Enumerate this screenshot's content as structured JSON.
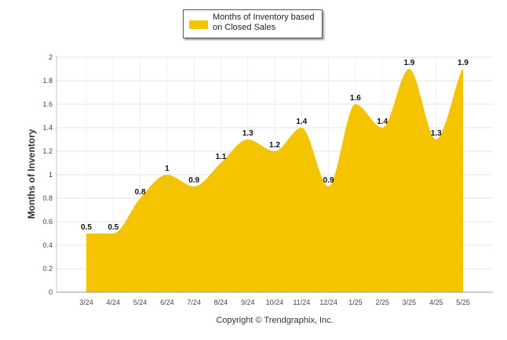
{
  "chart_data": {
    "type": "area",
    "legend": "Months of Inventory based on Closed Sales",
    "ylabel": "Months of Inventory",
    "categories": [
      "3/24",
      "4/24",
      "5/24",
      "6/24",
      "7/24",
      "8/24",
      "9/24",
      "10/24",
      "11/24",
      "12/24",
      "1/25",
      "2/25",
      "3/25",
      "4/25",
      "5/25"
    ],
    "values": [
      0.5,
      0.5,
      0.8,
      1,
      0.9,
      1.1,
      1.3,
      1.2,
      1.4,
      0.9,
      1.6,
      1.4,
      1.9,
      1.3,
      1.9
    ],
    "data_labels": [
      "0.5",
      "0.5",
      "0.8",
      "1",
      "0.9",
      "1.1",
      "1.3",
      "1.2",
      "1.4",
      "0.9",
      "1.6",
      "1.4",
      "1.9",
      "1.3",
      "1.9"
    ],
    "ylim": [
      0,
      2
    ],
    "yticks": [
      "0",
      "0.2",
      "0.4",
      "0.6",
      "0.8",
      "1",
      "1.2",
      "1.4",
      "1.6",
      "1.8",
      "2"
    ],
    "grid": true,
    "legend_position": "top-center",
    "color": "#f5c400"
  },
  "footer": {
    "copyright": "Copyright © Trendgraphix, Inc."
  }
}
